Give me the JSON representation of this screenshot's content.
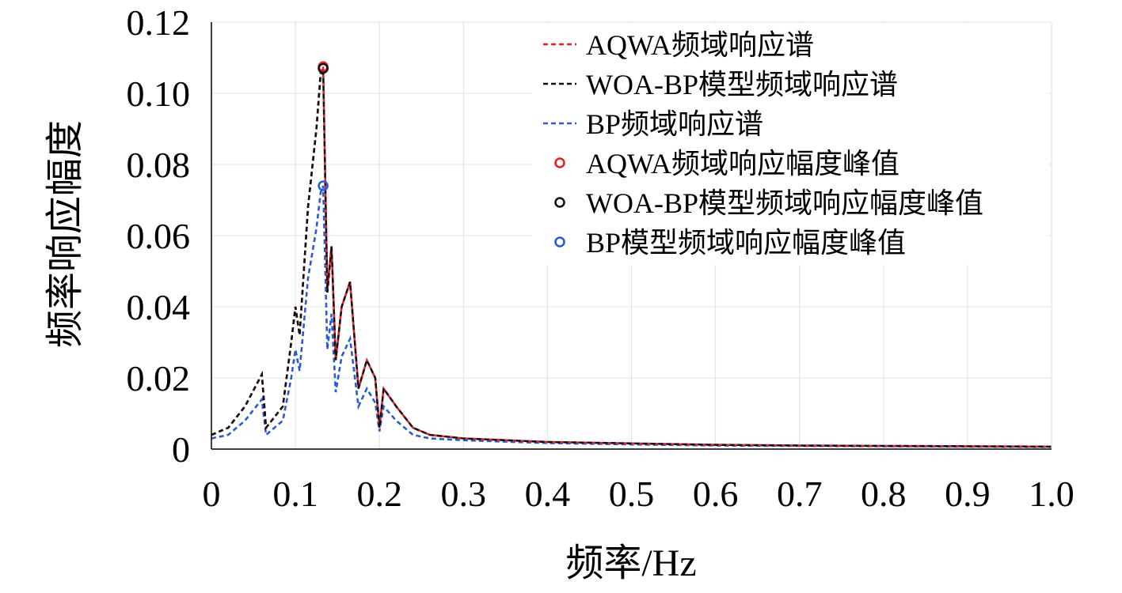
{
  "chart_data": {
    "type": "line",
    "title": "",
    "xlabel": "频率/Hz",
    "ylabel": "频率响应幅度",
    "xlim": [
      0,
      1.0
    ],
    "ylim": [
      0,
      0.12
    ],
    "x_ticks": [
      "0",
      "0.1",
      "0.2",
      "0.3",
      "0.4",
      "0.5",
      "0.6",
      "0.7",
      "0.8",
      "0.9",
      "1.0"
    ],
    "y_ticks": [
      "0",
      "0.02",
      "0.04",
      "0.06",
      "0.08",
      "0.10",
      "0.12"
    ],
    "grid": true,
    "legend_position": "top-right",
    "series": [
      {
        "name": "AQWA频域响应谱",
        "color": "#e8202a",
        "style": "dashed",
        "x": [
          0,
          0.02,
          0.04,
          0.06,
          0.065,
          0.085,
          0.095,
          0.1,
          0.105,
          0.115,
          0.125,
          0.13,
          0.133,
          0.138,
          0.143,
          0.148,
          0.155,
          0.165,
          0.175,
          0.185,
          0.195,
          0.2,
          0.205,
          0.22,
          0.24,
          0.26,
          0.3,
          0.4,
          0.5,
          0.6,
          0.7,
          0.8,
          0.9,
          1.0
        ],
        "y": [
          0.004,
          0.006,
          0.012,
          0.021,
          0.006,
          0.012,
          0.03,
          0.04,
          0.032,
          0.068,
          0.09,
          0.106,
          0.1075,
          0.045,
          0.057,
          0.025,
          0.04,
          0.047,
          0.017,
          0.025,
          0.02,
          0.006,
          0.017,
          0.012,
          0.006,
          0.004,
          0.003,
          0.002,
          0.0016,
          0.0012,
          0.001,
          0.0009,
          0.0008,
          0.0007
        ]
      },
      {
        "name": "WOA-BP模型频域响应谱",
        "color": "#111111",
        "style": "dashed",
        "x": [
          0,
          0.02,
          0.04,
          0.06,
          0.065,
          0.085,
          0.095,
          0.1,
          0.105,
          0.115,
          0.125,
          0.13,
          0.133,
          0.138,
          0.143,
          0.148,
          0.155,
          0.165,
          0.175,
          0.185,
          0.195,
          0.2,
          0.205,
          0.22,
          0.24,
          0.26,
          0.3,
          0.4,
          0.5,
          0.6,
          0.7,
          0.8,
          0.9,
          1.0
        ],
        "y": [
          0.004,
          0.006,
          0.012,
          0.021,
          0.006,
          0.012,
          0.03,
          0.04,
          0.032,
          0.068,
          0.09,
          0.105,
          0.107,
          0.044,
          0.057,
          0.025,
          0.04,
          0.047,
          0.017,
          0.025,
          0.02,
          0.006,
          0.017,
          0.012,
          0.006,
          0.004,
          0.003,
          0.002,
          0.0016,
          0.0012,
          0.001,
          0.0009,
          0.0008,
          0.0007
        ]
      },
      {
        "name": "BP频域响应谱",
        "color": "#2a5bd7",
        "style": "dashed",
        "x": [
          0,
          0.02,
          0.04,
          0.06,
          0.065,
          0.085,
          0.095,
          0.1,
          0.105,
          0.115,
          0.125,
          0.13,
          0.133,
          0.138,
          0.143,
          0.148,
          0.155,
          0.165,
          0.175,
          0.185,
          0.195,
          0.2,
          0.205,
          0.22,
          0.24,
          0.26,
          0.3,
          0.4,
          0.5,
          0.6,
          0.7,
          0.8,
          0.9,
          1.0
        ],
        "y": [
          0.003,
          0.004,
          0.008,
          0.014,
          0.004,
          0.008,
          0.02,
          0.028,
          0.022,
          0.048,
          0.062,
          0.072,
          0.074,
          0.028,
          0.038,
          0.016,
          0.026,
          0.031,
          0.012,
          0.017,
          0.013,
          0.005,
          0.012,
          0.008,
          0.004,
          0.003,
          0.0025,
          0.0017,
          0.0013,
          0.001,
          0.0009,
          0.0008,
          0.0007,
          0.0006
        ]
      }
    ],
    "peaks": [
      {
        "name": "AQWA频域响应幅度峰值",
        "color": "#e8202a",
        "x": 0.133,
        "y": 0.1075
      },
      {
        "name": "WOA-BP模型频域响应幅度峰值",
        "color": "#111111",
        "x": 0.133,
        "y": 0.107
      },
      {
        "name": "BP模型频域响应幅度峰值",
        "color": "#2a5bd7",
        "x": 0.133,
        "y": 0.074
      }
    ]
  }
}
